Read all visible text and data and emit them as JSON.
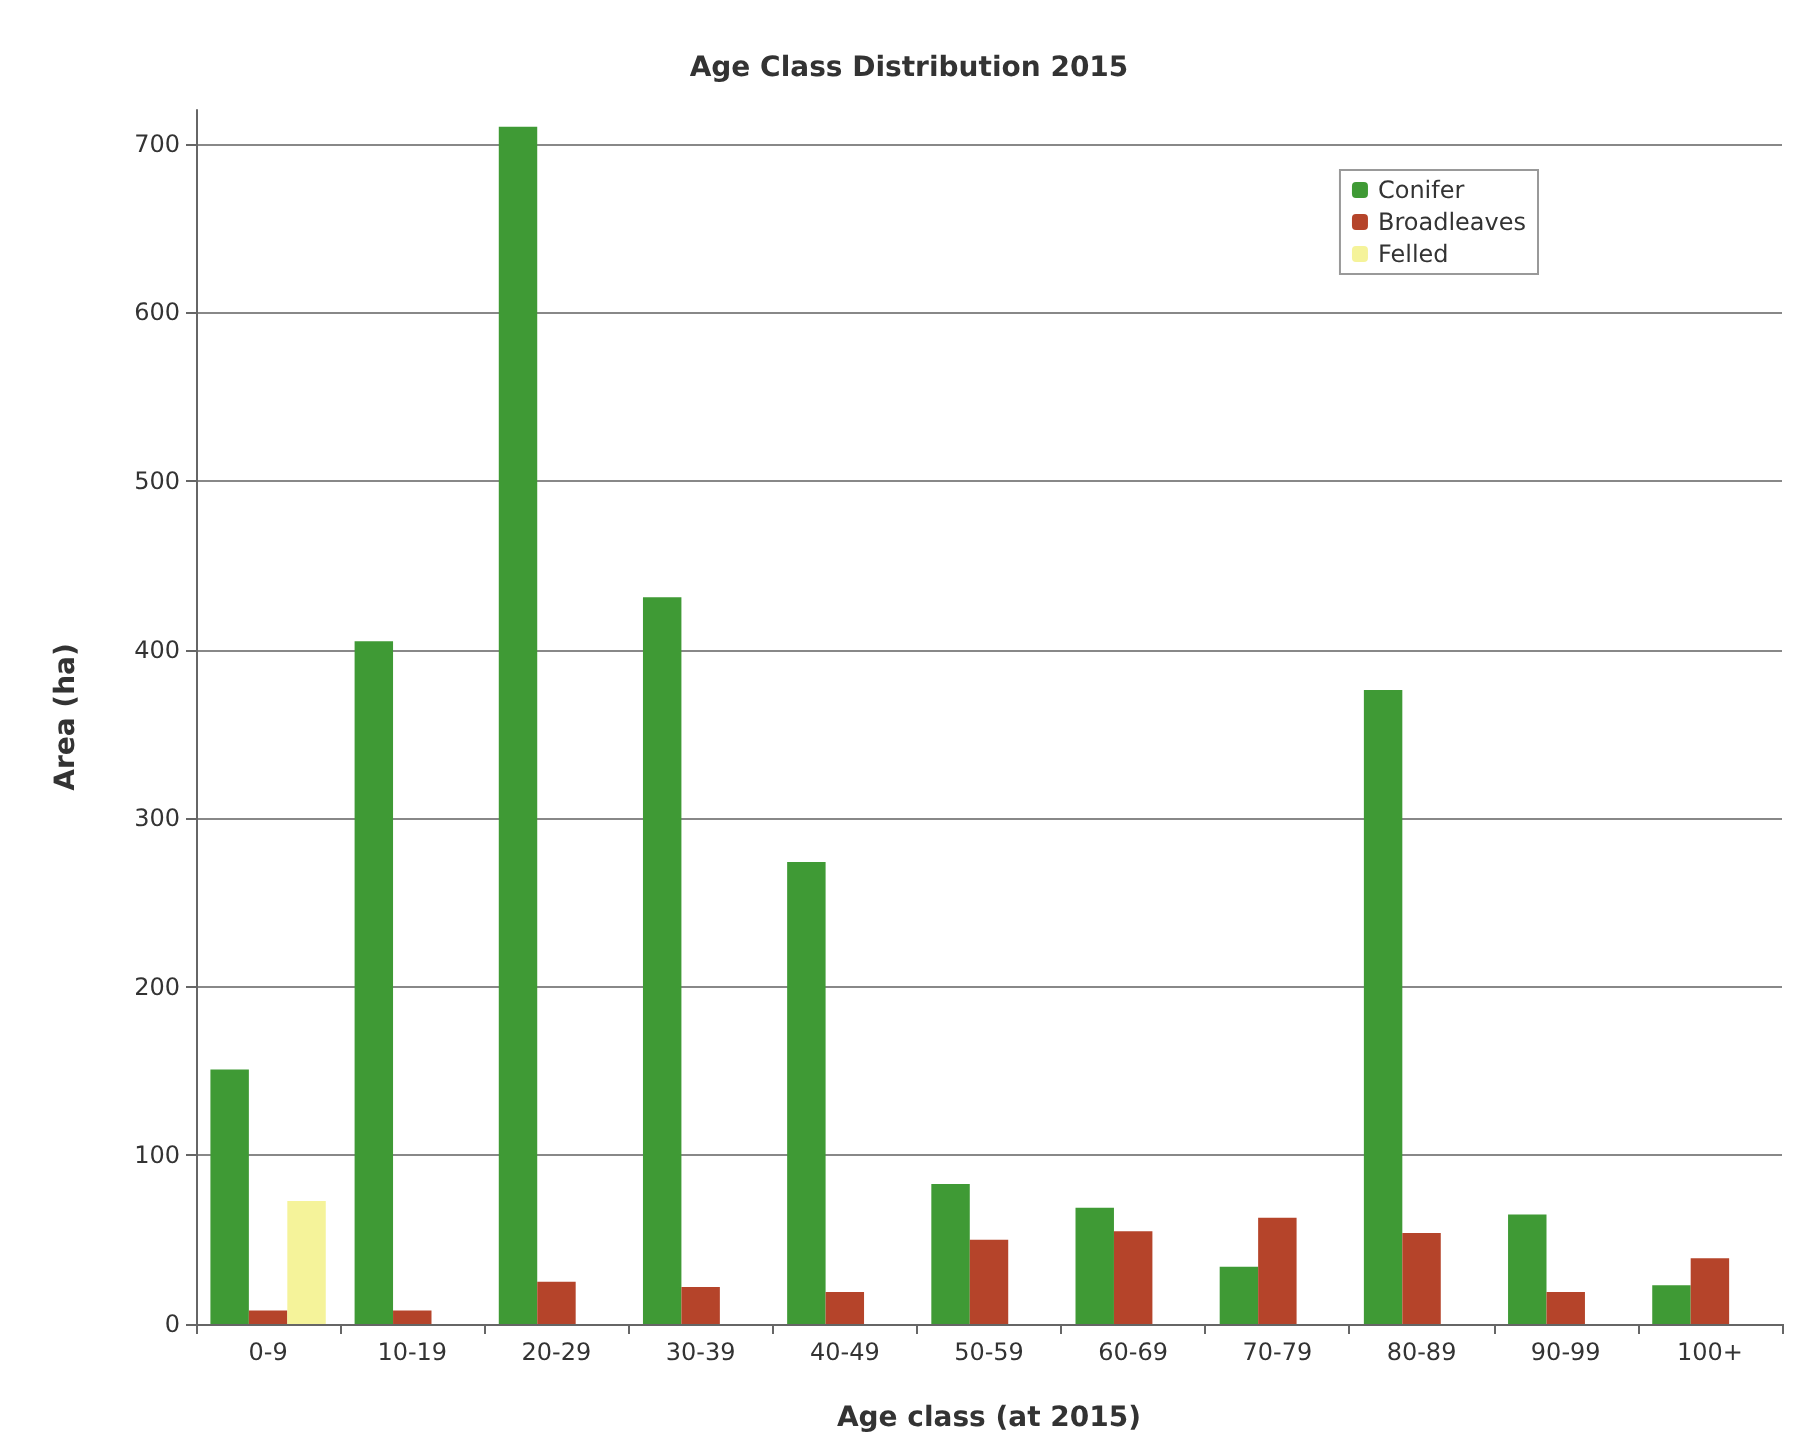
{
  "chart_data": {
    "type": "bar",
    "title": "Age Class Distribution 2015",
    "xlabel": "Age class (at 2015)",
    "ylabel": "Area (ha)",
    "categories": [
      "0-9",
      "10-19",
      "20-29",
      "30-39",
      "40-49",
      "50-59",
      "60-69",
      "70-79",
      "80-89",
      "90-99",
      "100+"
    ],
    "series": [
      {
        "name": "Conifer",
        "color": "#3f9a35",
        "values": [
          151,
          405,
          710,
          431,
          274,
          83,
          69,
          34,
          376,
          65,
          23
        ]
      },
      {
        "name": "Broadleaves",
        "color": "#b5442a",
        "values": [
          8,
          8,
          25,
          22,
          19,
          50,
          55,
          63,
          54,
          19,
          39
        ]
      },
      {
        "name": "Felled",
        "color": "#f5f39a",
        "values": [
          73,
          null,
          null,
          null,
          null,
          null,
          null,
          null,
          null,
          null,
          null
        ]
      }
    ],
    "ylim": [
      0,
      720
    ],
    "yticks": [
      0,
      100,
      200,
      300,
      400,
      500,
      600,
      700
    ],
    "grid": "y",
    "legend": "top right"
  }
}
